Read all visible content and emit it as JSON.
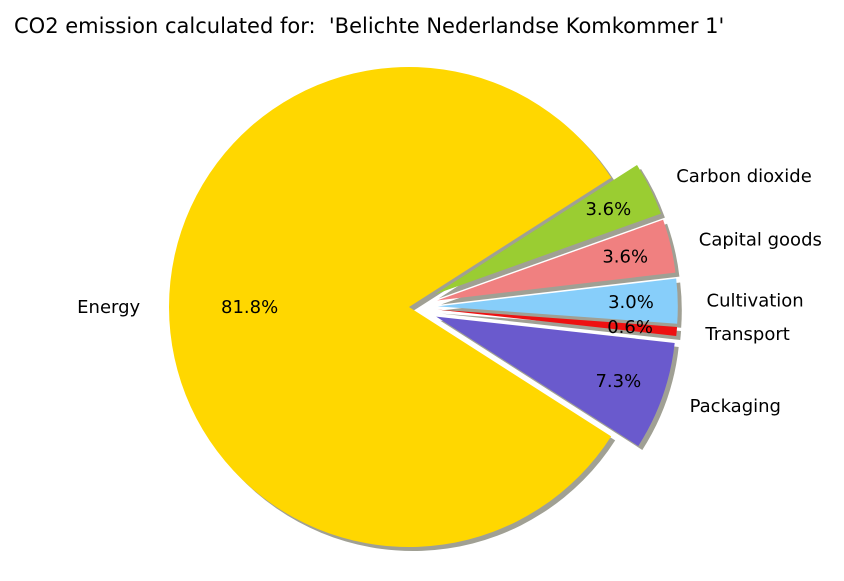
{
  "chart_data": {
    "type": "pie",
    "title": "CO2 emission calculated for:  'Belichte Nederlandse Komkommer 1'",
    "slices": [
      {
        "label": "Energy",
        "value": 81.8,
        "pct_label": "81.8%",
        "color": "#ffd700",
        "exploded": false
      },
      {
        "label": "Packaging",
        "value": 7.3,
        "pct_label": "7.3%",
        "color": "#6a5acd",
        "exploded": true
      },
      {
        "label": "Transport",
        "value": 0.6,
        "pct_label": "0.6%",
        "color": "#ee1111",
        "exploded": true
      },
      {
        "label": "Cultivation",
        "value": 3.0,
        "pct_label": "3.0%",
        "color": "#87cefa",
        "exploded": true
      },
      {
        "label": "Capital goods",
        "value": 3.6,
        "pct_label": "3.6%",
        "color": "#f08080",
        "exploded": true
      },
      {
        "label": "Carbon dioxide",
        "value": 3.6,
        "pct_label": "3.6%",
        "color": "#9acd32",
        "exploded": true
      }
    ],
    "shadow": true,
    "legend": "none"
  }
}
